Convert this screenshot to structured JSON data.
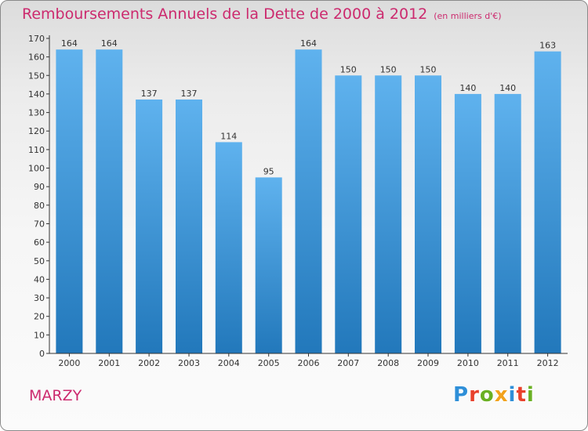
{
  "title": "Remboursements Annuels de la Dette de 2000 à 2012",
  "unit": "(en milliers d'€)",
  "commune": "MARZY",
  "logo": {
    "text": "Proxiti",
    "letter_colors": [
      "#2f8fd8",
      "#e8412c",
      "#6ab023",
      "#f2a21c",
      "#2f8fd8",
      "#e8412c",
      "#6ab023"
    ]
  },
  "colors": {
    "bar_top": "#5fb2ee",
    "bar_bottom": "#2278bb",
    "title": "#cc2a6e",
    "axis": "#333333"
  },
  "chart_data": {
    "type": "bar",
    "categories": [
      "2000",
      "2001",
      "2002",
      "2003",
      "2004",
      "2005",
      "2006",
      "2007",
      "2008",
      "2009",
      "2010",
      "2011",
      "2012"
    ],
    "values": [
      164,
      164,
      137,
      137,
      114,
      95,
      164,
      150,
      150,
      150,
      140,
      140,
      163
    ],
    "ylim": [
      0,
      170
    ],
    "yticks": [
      0,
      10,
      20,
      30,
      40,
      50,
      60,
      70,
      80,
      90,
      100,
      110,
      120,
      130,
      140,
      150,
      160,
      170
    ],
    "grid": false,
    "legend": "none"
  }
}
